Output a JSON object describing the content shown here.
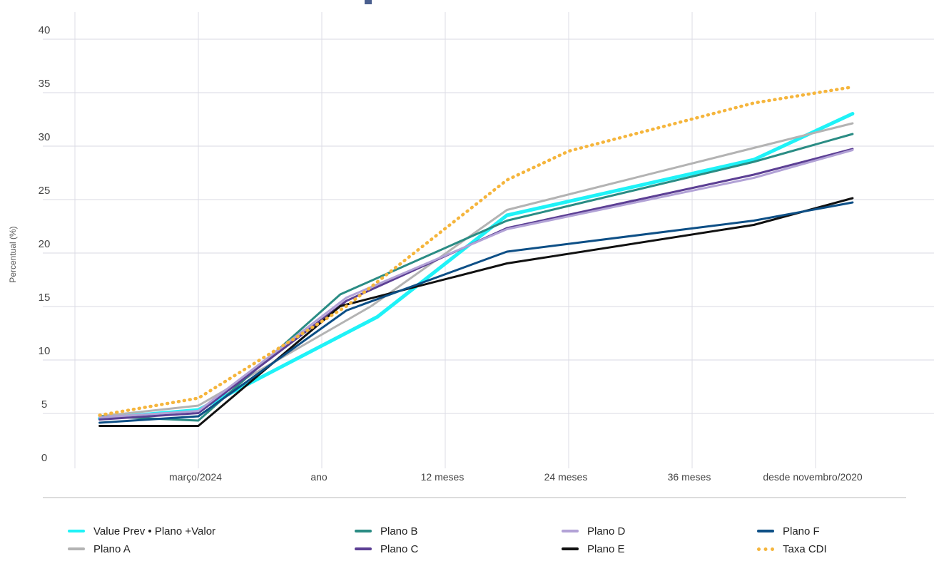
{
  "chart_data": {
    "type": "line",
    "ylabel": "Percentual (%)",
    "ylim": [
      0,
      40
    ],
    "y_ticks": [
      "0",
      "5",
      "10",
      "15",
      "20",
      "25",
      "30",
      "35",
      "40"
    ],
    "x_tick_labels": [
      "março/2024",
      "ano",
      "12 meses",
      "24 meses",
      "36 meses",
      "desde novembro/2020"
    ],
    "series": [
      {
        "name": "Value Prev • Plano +Valor",
        "color": "#1ff2f7",
        "width": 5,
        "dash": "",
        "x": [
          0.2,
          1.0,
          2.45,
          3.5,
          5.5,
          6.3
        ],
        "y": [
          2.0,
          2.8,
          11.5,
          21.0,
          26.2,
          30.5
        ]
      },
      {
        "name": "Plano A",
        "color": "#b3b3b3",
        "width": 3,
        "dash": "",
        "x": [
          0.2,
          1.0,
          2.4,
          3.5,
          5.5,
          6.3
        ],
        "y": [
          2.2,
          3.2,
          12.5,
          21.5,
          27.3,
          29.6
        ]
      },
      {
        "name": "Plano B",
        "color": "#2a8c84",
        "width": 3,
        "dash": "",
        "x": [
          0.2,
          1.0,
          2.15,
          3.5,
          5.5,
          6.3
        ],
        "y": [
          2.2,
          1.8,
          13.6,
          20.5,
          26.0,
          28.6
        ]
      },
      {
        "name": "Plano C",
        "color": "#5c3f94",
        "width": 3,
        "dash": "",
        "x": [
          0.2,
          1.0,
          2.2,
          3.5,
          5.5,
          6.3
        ],
        "y": [
          1.9,
          2.5,
          13.0,
          19.8,
          24.8,
          27.2
        ]
      },
      {
        "name": "Plano D",
        "color": "#b2a2d6",
        "width": 3,
        "dash": "",
        "x": [
          0.2,
          1.0,
          2.2,
          3.5,
          5.5,
          6.3
        ],
        "y": [
          2.1,
          2.7,
          13.3,
          19.7,
          24.5,
          27.1
        ]
      },
      {
        "name": "Plano E",
        "color": "#111111",
        "width": 3,
        "dash": "",
        "x": [
          0.2,
          1.0,
          2.15,
          3.5,
          5.5,
          6.3
        ],
        "y": [
          1.3,
          1.3,
          12.5,
          16.5,
          20.1,
          22.6
        ]
      },
      {
        "name": "Plano F",
        "color": "#0d4f86",
        "width": 3,
        "dash": "",
        "x": [
          0.2,
          1.0,
          2.2,
          3.5,
          5.5,
          6.3
        ],
        "y": [
          1.6,
          2.2,
          12.1,
          17.6,
          20.5,
          22.2
        ]
      },
      {
        "name": "Taxa CDI",
        "color": "#f5b53c",
        "width": 4.5,
        "dash": "1 7",
        "x": [
          0.2,
          1.0,
          2.2,
          3.5,
          4.0,
          5.5,
          6.3
        ],
        "y": [
          2.3,
          3.9,
          12.5,
          24.3,
          27.0,
          31.5,
          33.0
        ]
      }
    ],
    "legend": [
      {
        "name": "Value Prev • Plano +Valor",
        "color": "#1ff2f7",
        "style": "solid"
      },
      {
        "name": "Plano A",
        "color": "#b3b3b3",
        "style": "solid"
      },
      {
        "name": "Plano B",
        "color": "#2a8c84",
        "style": "solid"
      },
      {
        "name": "Plano C",
        "color": "#5c3f94",
        "style": "solid"
      },
      {
        "name": "Plano D",
        "color": "#b2a2d6",
        "style": "solid"
      },
      {
        "name": "Plano E",
        "color": "#111111",
        "style": "solid"
      },
      {
        "name": "Plano F",
        "color": "#0d4f86",
        "style": "solid"
      },
      {
        "name": "Taxa CDI",
        "color": "#f5b53c",
        "style": "dotted"
      }
    ],
    "legend_placement": "bottom",
    "grid": true
  }
}
